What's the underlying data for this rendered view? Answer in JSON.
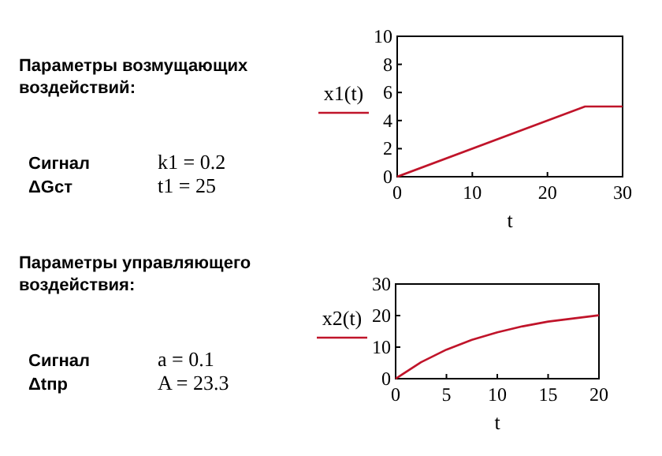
{
  "chart_data": [
    {
      "type": "other",
      "title": "Параметры возмущающих воздействий:",
      "annotations": [
        "Сигнал",
        "ΔGст",
        "k1 = 0.2",
        "t1 = 25"
      ]
    },
    {
      "type": "line",
      "xlabel": "t",
      "x": [
        0,
        25,
        30
      ],
      "series": [
        {
          "name": "x1(t)",
          "color": "#c0142a",
          "values": [
            0,
            5,
            5
          ]
        }
      ],
      "xlim": [
        0,
        30
      ],
      "xticks": [
        0,
        10,
        20,
        30
      ],
      "ylim": [
        0,
        10
      ],
      "yticks": [
        0,
        2,
        4,
        6,
        8,
        10
      ],
      "legend": "left",
      "grid": false
    },
    {
      "type": "other",
      "title": "Параметры управляющего воздействия:",
      "annotations": [
        "Сигнал",
        "Δtпр",
        "a = 0.1",
        "A = 23.3"
      ]
    },
    {
      "type": "line",
      "xlabel": "t",
      "x": [
        0,
        2.5,
        5,
        7.5,
        10,
        12.5,
        15,
        17.5,
        20
      ],
      "series": [
        {
          "name": "x2(t)",
          "color": "#c0142a",
          "values": [
            0,
            5.2,
            9.2,
            12.3,
            14.7,
            16.6,
            18.1,
            19.1,
            20.1
          ]
        }
      ],
      "xlim": [
        0,
        20
      ],
      "xticks": [
        0,
        5,
        10,
        15,
        20
      ],
      "ylim": [
        0,
        30
      ],
      "yticks": [
        0,
        10,
        20,
        30
      ],
      "legend": "left",
      "grid": false
    }
  ]
}
